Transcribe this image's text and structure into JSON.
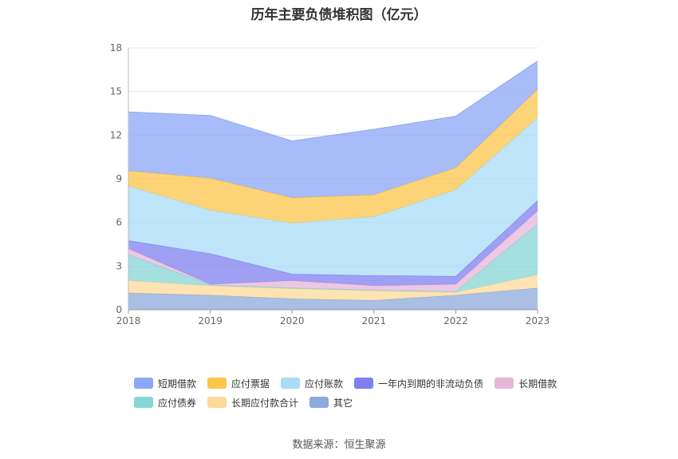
{
  "title": "历年主要负债堆积图（亿元）",
  "source": "数据来源：恒生聚源",
  "chart_data": {
    "type": "area",
    "stacked": true,
    "title": "历年主要负债堆积图（亿元）",
    "categories": [
      "2018",
      "2019",
      "2020",
      "2021",
      "2022",
      "2023"
    ],
    "ylim": [
      0,
      18
    ],
    "yticks": [
      0,
      3,
      6,
      9,
      12,
      15,
      18
    ],
    "grid": true,
    "legend_position": "bottom",
    "series": [
      {
        "name": "其它",
        "color": "#8eaadb",
        "values": [
          1.15,
          1.0,
          0.75,
          0.65,
          1.0,
          1.5
        ]
      },
      {
        "name": "长期应付款合计",
        "color": "#ffd99a",
        "values": [
          0.85,
          0.65,
          0.7,
          0.65,
          0.2,
          0.9
        ]
      },
      {
        "name": "应付债券",
        "color": "#86d6d6",
        "values": [
          1.8,
          0.05,
          0.05,
          0.05,
          0.05,
          3.5
        ]
      },
      {
        "name": "长期借款",
        "color": "#e6b5d8",
        "values": [
          0.4,
          0.05,
          0.5,
          0.3,
          0.5,
          0.9
        ]
      },
      {
        "name": "一年内到期的非流动负债",
        "color": "#7f7ff0",
        "values": [
          0.55,
          2.1,
          0.45,
          0.7,
          0.55,
          0.7
        ]
      },
      {
        "name": "应付账款",
        "color": "#a8dcf7",
        "values": [
          3.75,
          3.0,
          3.5,
          4.05,
          5.95,
          5.7
        ]
      },
      {
        "name": "应付票据",
        "color": "#fbc64a",
        "values": [
          1.05,
          2.2,
          1.75,
          1.5,
          1.5,
          1.95
        ]
      },
      {
        "name": "短期借款",
        "color": "#8ca6f8",
        "values": [
          4.05,
          4.3,
          3.9,
          4.5,
          3.55,
          1.95
        ]
      }
    ],
    "legend_order": [
      "短期借款",
      "应付票据",
      "应付账款",
      "一年内到期的非流动负债",
      "长期借款",
      "应付债券",
      "长期应付款合计",
      "其它"
    ]
  }
}
